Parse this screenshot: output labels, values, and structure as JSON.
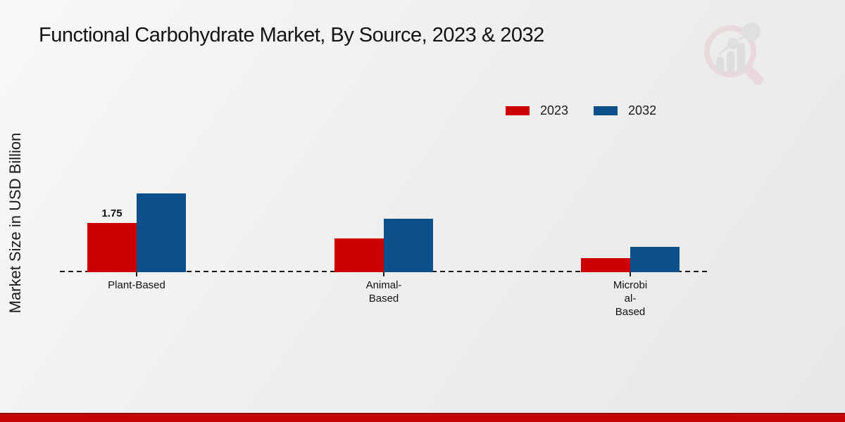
{
  "page": {
    "title": "Functional Carbohydrate Market, By Source, 2023 & 2032",
    "y_axis_label": "Market Size in USD Billion"
  },
  "legend": {
    "position": "top-right",
    "items": [
      {
        "label": "2023",
        "color": "#cc0000"
      },
      {
        "label": "2032",
        "color": "#0d4f8b"
      }
    ]
  },
  "chart_data": {
    "type": "bar",
    "title": "Functional Carbohydrate Market, By Source, 2023 & 2032",
    "xlabel": "",
    "ylabel": "Market Size in USD Billion",
    "categories": [
      "Plant-Based",
      "Animal-Based",
      "Microbial-Based"
    ],
    "category_label_lines": [
      [
        "Plant-Based"
      ],
      [
        "Animal-",
        "Based"
      ],
      [
        "Microbi",
        "al-",
        "Based"
      ]
    ],
    "series": [
      {
        "name": "2023",
        "color": "#cc0000",
        "values": [
          1.75,
          1.2,
          0.5
        ]
      },
      {
        "name": "2032",
        "color": "#0d4f8b",
        "values": [
          2.8,
          1.9,
          0.9
        ]
      }
    ],
    "data_labels": [
      {
        "category_index": 0,
        "series_index": 0,
        "text": "1.75"
      }
    ],
    "ylim": [
      0,
      3.5
    ],
    "grid": false,
    "baseline_style": "dashed",
    "legend_position": "top-right"
  },
  "footer": {
    "band_color": "#c60606",
    "band_edge_color": "#950909"
  },
  "watermark": {
    "name": "market-research-magnifier-logo",
    "ring_color": "#e7cdd1",
    "bar_color": "#d4d4d7"
  }
}
